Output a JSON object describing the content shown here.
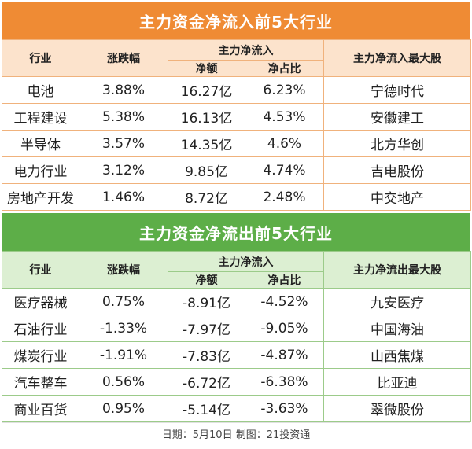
{
  "inflow": {
    "title": "主力资金净流入前5大行业",
    "headers": {
      "industry": "行业",
      "change": "涨跌幅",
      "net_flow": "主力净流入",
      "net_amount": "净额",
      "net_ratio": "净占比",
      "top_stock": "主力净流入最大股"
    },
    "rows": [
      {
        "industry": "电池",
        "change": "3.88%",
        "amount": "16.27亿",
        "ratio": "6.23%",
        "stock": "宁德时代"
      },
      {
        "industry": "工程建设",
        "change": "5.38%",
        "amount": "16.13亿",
        "ratio": "4.53%",
        "stock": "安徽建工"
      },
      {
        "industry": "半导体",
        "change": "3.57%",
        "amount": "14.35亿",
        "ratio": "4.6%",
        "stock": "北方华创"
      },
      {
        "industry": "电力行业",
        "change": "3.12%",
        "amount": "9.85亿",
        "ratio": "4.74%",
        "stock": "吉电股份"
      },
      {
        "industry": "房地产开发",
        "change": "1.46%",
        "amount": "8.72亿",
        "ratio": "2.48%",
        "stock": "中交地产"
      }
    ]
  },
  "outflow": {
    "title": "主力资金净流出前5大行业",
    "headers": {
      "industry": "行业",
      "change": "涨跌幅",
      "net_flow": "主力净流入",
      "net_amount": "净额",
      "net_ratio": "净占比",
      "top_stock": "主力净流出最大股"
    },
    "rows": [
      {
        "industry": "医疗器械",
        "change": "0.75%",
        "amount": "-8.91亿",
        "ratio": "-4.52%",
        "stock": "九安医疗"
      },
      {
        "industry": "石油行业",
        "change": "-1.33%",
        "amount": "-7.97亿",
        "ratio": "-9.05%",
        "stock": "中国海油"
      },
      {
        "industry": "煤炭行业",
        "change": "-1.91%",
        "amount": "-7.83亿",
        "ratio": "-4.87%",
        "stock": "山西焦煤"
      },
      {
        "industry": "汽车整车",
        "change": "0.56%",
        "amount": "-6.72亿",
        "ratio": "-6.38%",
        "stock": "比亚迪"
      },
      {
        "industry": "商业百货",
        "change": "0.95%",
        "amount": "-5.14亿",
        "ratio": "-3.63%",
        "stock": "翠微股份"
      }
    ]
  },
  "footer": "日期：5月10日 制图：21投资通",
  "colors": {
    "inflow_title": "#EF8B34",
    "inflow_header": "#FCE3CC",
    "outflow_title": "#5DAE48",
    "outflow_header": "#DCEFD2"
  }
}
